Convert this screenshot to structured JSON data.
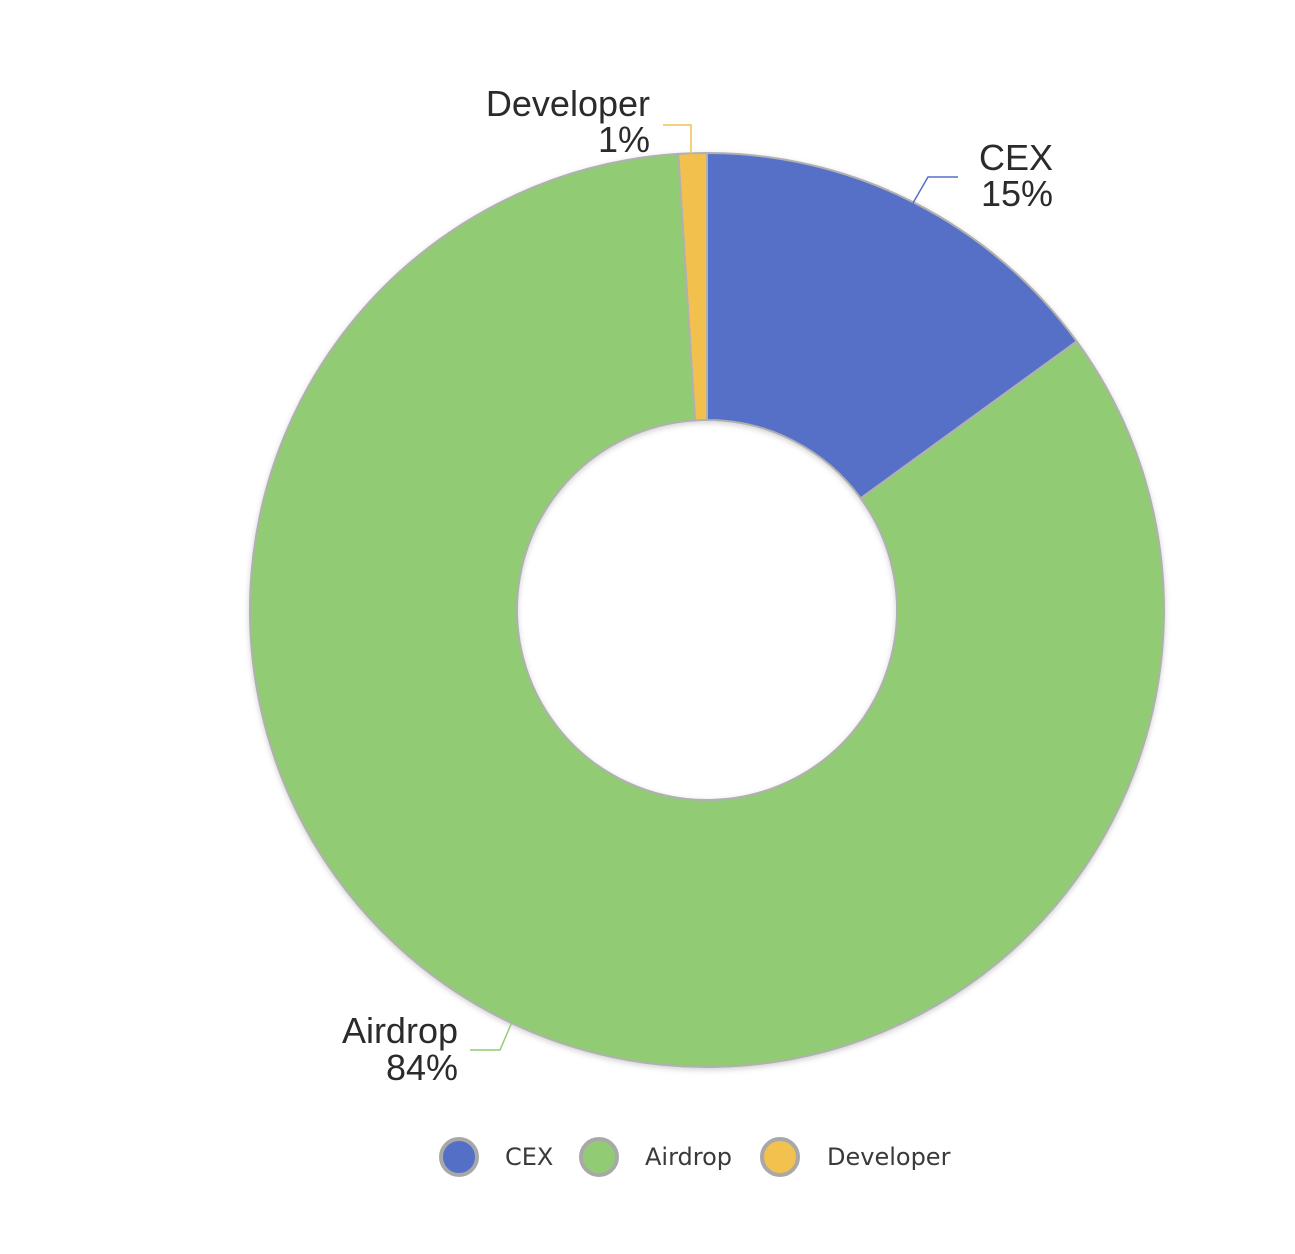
{
  "chart_data": {
    "type": "pie",
    "variant": "donut",
    "title": "",
    "slices": [
      {
        "name": "CEX",
        "value": 15,
        "label": "15%",
        "color": "#5470c6"
      },
      {
        "name": "Airdrop",
        "value": 84,
        "label": "84%",
        "color": "#91cc75"
      },
      {
        "name": "Developer",
        "value": 1,
        "label": "1%",
        "color": "#f2c14e"
      }
    ],
    "legend": {
      "placement": "bottom",
      "items": [
        "CEX",
        "Airdrop",
        "Developer"
      ]
    }
  }
}
